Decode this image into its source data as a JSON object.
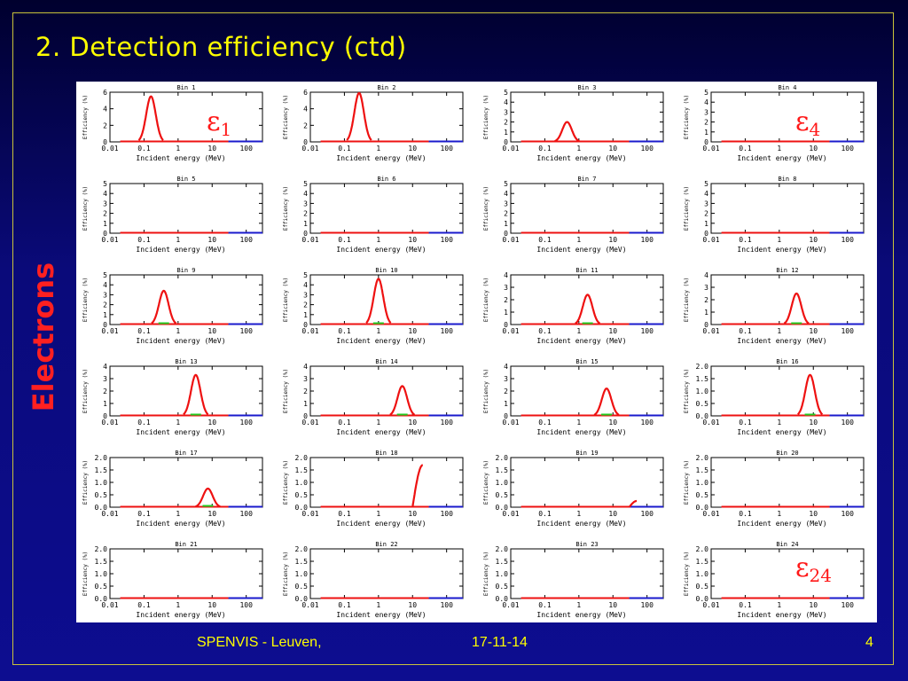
{
  "slide": {
    "title": "2.  Detection efficiency (ctd)",
    "side_label": "Electrons",
    "footer_left": "SPENVIS - Leuven,",
    "footer_date": "17-11-14",
    "page_number": "4",
    "eps_labels": [
      {
        "symbol": "ε",
        "sub": "1"
      },
      {
        "symbol": "ε",
        "sub": "4"
      },
      {
        "symbol": "ε",
        "sub": "24"
      }
    ]
  },
  "colors": {
    "background_top": "#00002e",
    "background_bottom": "#0d0d90",
    "title": "#ffff00",
    "side_label": "#ff2020",
    "curve_red": "#ee1111",
    "curve_blue": "#1a1acc",
    "curve_green": "#22cc22",
    "border": "#c9c23a"
  },
  "chart_data": {
    "type": "line",
    "layout": "6x4 grid of small multiples",
    "xscale": "log",
    "xlim": [
      0.01,
      300
    ],
    "xticks": [
      "0.01",
      "0.1",
      "1",
      "10",
      "100"
    ],
    "xlabel": "Incident energy (MeV)",
    "ylabel": "Efficiency (%)",
    "panels": [
      {
        "title": "Bin   1",
        "yticks": [
          "0",
          "2",
          "4",
          "6"
        ],
        "ylim": [
          0,
          6
        ],
        "peak_energy": 0.16,
        "peak_value": 5.5
      },
      {
        "title": "Bin   2",
        "yticks": [
          "0",
          "2",
          "4",
          "6"
        ],
        "ylim": [
          0,
          6
        ],
        "peak_energy": 0.27,
        "peak_value": 5.9
      },
      {
        "title": "Bin   3",
        "yticks": [
          "0",
          "1",
          "2",
          "3",
          "4",
          "5"
        ],
        "ylim": [
          0,
          5
        ],
        "peak_energy": 0.45,
        "peak_value": 2.0
      },
      {
        "title": "Bin   4",
        "yticks": [
          "0",
          "1",
          "2",
          "3",
          "4",
          "5"
        ],
        "ylim": [
          0,
          5
        ],
        "peak_energy": null,
        "peak_value": 0
      },
      {
        "title": "Bin   5",
        "yticks": [
          "0",
          "1",
          "2",
          "3",
          "4",
          "5"
        ],
        "ylim": [
          0,
          5
        ],
        "peak_energy": null,
        "peak_value": 0
      },
      {
        "title": "Bin   6",
        "yticks": [
          "0",
          "1",
          "2",
          "3",
          "4",
          "5"
        ],
        "ylim": [
          0,
          5
        ],
        "peak_energy": null,
        "peak_value": 0
      },
      {
        "title": "Bin   7",
        "yticks": [
          "0",
          "1",
          "2",
          "3",
          "4",
          "5"
        ],
        "ylim": [
          0,
          5
        ],
        "peak_energy": null,
        "peak_value": 0
      },
      {
        "title": "Bin   8",
        "yticks": [
          "0",
          "1",
          "2",
          "3",
          "4",
          "5"
        ],
        "ylim": [
          0,
          5
        ],
        "peak_energy": null,
        "peak_value": 0
      },
      {
        "title": "Bin   9",
        "yticks": [
          "0",
          "1",
          "2",
          "3",
          "4",
          "5"
        ],
        "ylim": [
          0,
          5
        ],
        "peak_energy": 0.38,
        "peak_value": 3.4
      },
      {
        "title": "Bin  10",
        "yticks": [
          "0",
          "1",
          "2",
          "3",
          "4",
          "5"
        ],
        "ylim": [
          0,
          5
        ],
        "peak_energy": 1.0,
        "peak_value": 4.6
      },
      {
        "title": "Bin  11",
        "yticks": [
          "0",
          "1",
          "2",
          "3",
          "4"
        ],
        "ylim": [
          0,
          4
        ],
        "peak_energy": 1.8,
        "peak_value": 2.4
      },
      {
        "title": "Bin  12",
        "yticks": [
          "0",
          "1",
          "2",
          "3",
          "4"
        ],
        "ylim": [
          0,
          4
        ],
        "peak_energy": 3.2,
        "peak_value": 2.5
      },
      {
        "title": "Bin  13",
        "yticks": [
          "0",
          "1",
          "2",
          "3",
          "4"
        ],
        "ylim": [
          0,
          4
        ],
        "peak_energy": 3.3,
        "peak_value": 3.3
      },
      {
        "title": "Bin  14",
        "yticks": [
          "0",
          "1",
          "2",
          "3",
          "4"
        ],
        "ylim": [
          0,
          4
        ],
        "peak_energy": 5.0,
        "peak_value": 2.4
      },
      {
        "title": "Bin  15",
        "yticks": [
          "0",
          "1",
          "2",
          "3",
          "4"
        ],
        "ylim": [
          0,
          4
        ],
        "peak_energy": 6.5,
        "peak_value": 2.2
      },
      {
        "title": "Bin  16",
        "yticks": [
          "0.0",
          "0.5",
          "1.0",
          "1.5",
          "2.0"
        ],
        "ylim": [
          0,
          2
        ],
        "peak_energy": 8.0,
        "peak_value": 1.65
      },
      {
        "title": "Bin  17",
        "yticks": [
          "0.0",
          "0.5",
          "1.0",
          "1.5",
          "2.0"
        ],
        "ylim": [
          0,
          2
        ],
        "peak_energy": 7.5,
        "peak_value": 0.75
      },
      {
        "title": "Bin  18",
        "yticks": [
          "0.0",
          "0.5",
          "1.0",
          "1.5",
          "2.0"
        ],
        "ylim": [
          0,
          2
        ],
        "rising_from": 10,
        "rising_to": 20,
        "peak_value": 1.7
      },
      {
        "title": "Bin  19",
        "yticks": [
          "0.0",
          "0.5",
          "1.0",
          "1.5",
          "2.0"
        ],
        "ylim": [
          0,
          2
        ],
        "rising_from": 30,
        "rising_to": 50,
        "peak_value": 0.25
      },
      {
        "title": "Bin  20",
        "yticks": [
          "0.0",
          "0.5",
          "1.0",
          "1.5",
          "2.0"
        ],
        "ylim": [
          0,
          2
        ],
        "peak_energy": null,
        "peak_value": 0
      },
      {
        "title": "Bin  21",
        "yticks": [
          "0.0",
          "0.5",
          "1.0",
          "1.5",
          "2.0"
        ],
        "ylim": [
          0,
          2
        ],
        "peak_energy": null,
        "peak_value": 0
      },
      {
        "title": "Bin  22",
        "yticks": [
          "0.0",
          "0.5",
          "1.0",
          "1.5",
          "2.0"
        ],
        "ylim": [
          0,
          2
        ],
        "peak_energy": null,
        "peak_value": 0
      },
      {
        "title": "Bin  23",
        "yticks": [
          "0.0",
          "0.5",
          "1.0",
          "1.5",
          "2.0"
        ],
        "ylim": [
          0,
          2
        ],
        "peak_energy": null,
        "peak_value": 0
      },
      {
        "title": "Bin  24",
        "yticks": [
          "0.0",
          "0.5",
          "1.0",
          "1.5",
          "2.0"
        ],
        "ylim": [
          0,
          2
        ],
        "peak_energy": null,
        "peak_value": 0
      }
    ]
  }
}
